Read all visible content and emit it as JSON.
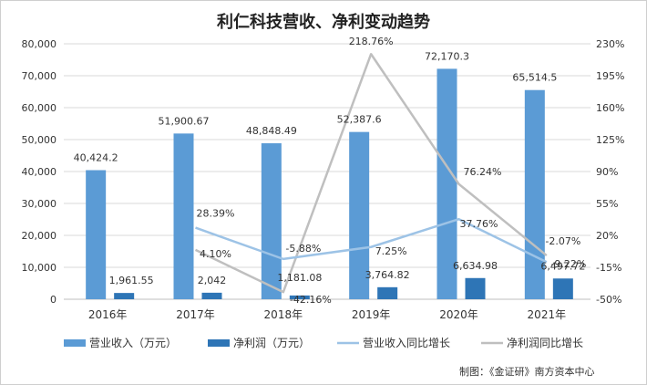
{
  "title": "利仁科技营收、净利变动趋势",
  "credit": "制图：《金证研》南方资本中心",
  "colors": {
    "revenue_bar": "#5b9bd5",
    "profit_bar": "#2e75b6",
    "revenue_growth_line": "#9dc3e6",
    "profit_growth_line": "#bfbfbf",
    "grid": "#d9d9d9",
    "axis_text": "#333333"
  },
  "chart_data": {
    "type": "bar",
    "title": "利仁科技营收、净利变动趋势",
    "categories": [
      "2016年",
      "2017年",
      "2018年",
      "2019年",
      "2020年",
      "2021年"
    ],
    "y_left": {
      "range": [
        0,
        80000
      ],
      "ticks": [
        "0",
        "10,000",
        "20,000",
        "30,000",
        "40,000",
        "50,000",
        "60,000",
        "70,000",
        "80,000"
      ]
    },
    "y_right": {
      "range": [
        -50,
        230
      ],
      "ticks": [
        "-50%",
        "-15%",
        "20%",
        "55%",
        "90%",
        "125%",
        "160%",
        "195%",
        "230%"
      ]
    },
    "grid": true,
    "legend_position": "bottom",
    "series": [
      {
        "name": "营业收入（万元）",
        "type": "bar",
        "axis": "left",
        "values": [
          40424.2,
          51900.67,
          48848.49,
          52387.6,
          72170.3,
          65514.5
        ],
        "labels": [
          "40,424.2",
          "51,900.67",
          "48,848.49",
          "52,387.6",
          "72,170.3",
          "65,514.5"
        ]
      },
      {
        "name": "净利润（万元）",
        "type": "bar",
        "axis": "left",
        "values": [
          1961.55,
          2042,
          1181.08,
          3764.82,
          6634.98,
          6497.72
        ],
        "labels": [
          "1,961.55",
          "2,042",
          "1,181.08",
          "3,764.82",
          "6,634.98",
          "6,497.72"
        ]
      },
      {
        "name": "营业收入同比增长",
        "type": "line",
        "axis": "right",
        "values": [
          null,
          28.39,
          -5.88,
          7.25,
          37.76,
          -9.22
        ],
        "labels": [
          "",
          "28.39%",
          "-5.88%",
          "7.25%",
          "37.76%",
          "-9.22%"
        ]
      },
      {
        "name": "净利润同比增长",
        "type": "line",
        "axis": "right",
        "values": [
          null,
          4.1,
          -42.16,
          218.76,
          76.24,
          -2.07
        ],
        "labels": [
          "",
          "4.10%",
          "-42.16%",
          "218.76%",
          "76.24%",
          "-2.07%"
        ]
      }
    ]
  }
}
